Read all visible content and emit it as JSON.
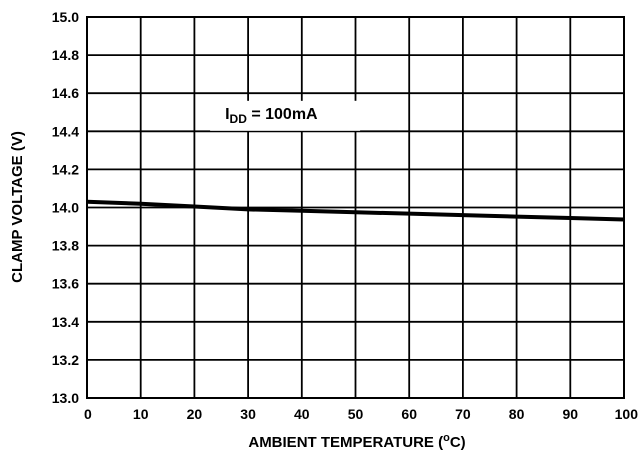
{
  "chart_data": {
    "type": "line",
    "title": "",
    "xlabel": "AMBIENT TEMPERATURE (",
    "xlabel_unit_sup": "o",
    "xlabel_suffix": "C)",
    "ylabel": "CLAMP VOLTAGE (V)",
    "xlim": [
      0,
      100
    ],
    "ylim": [
      13.0,
      15.0
    ],
    "x_ticks": [
      0,
      10,
      20,
      30,
      40,
      50,
      60,
      70,
      80,
      90,
      100
    ],
    "x_tick_labels": [
      "0",
      "10",
      "20",
      "30",
      "40",
      "50",
      "60",
      "70",
      "80",
      "90",
      "100"
    ],
    "y_ticks": [
      13.0,
      13.2,
      13.4,
      13.6,
      13.8,
      14.0,
      14.2,
      14.4,
      14.6,
      14.8,
      15.0
    ],
    "y_tick_labels": [
      "13.0",
      "13.2",
      "13.4",
      "13.6",
      "13.8",
      "14.0",
      "14.2",
      "14.4",
      "14.6",
      "14.8",
      "15.0"
    ],
    "grid": true,
    "series": [
      {
        "x": [
          0,
          10,
          20,
          30,
          40,
          50,
          60,
          70,
          80,
          90,
          100
        ],
        "y": [
          14.03,
          14.02,
          14.005,
          13.99,
          13.983,
          13.975,
          13.968,
          13.96,
          13.952,
          13.945,
          13.937
        ],
        "color": "#000000"
      }
    ],
    "annotation": {
      "prefix": "I",
      "sub": "DD",
      "suffix": " = 100mA",
      "x": 30,
      "y": 14.455
    }
  }
}
